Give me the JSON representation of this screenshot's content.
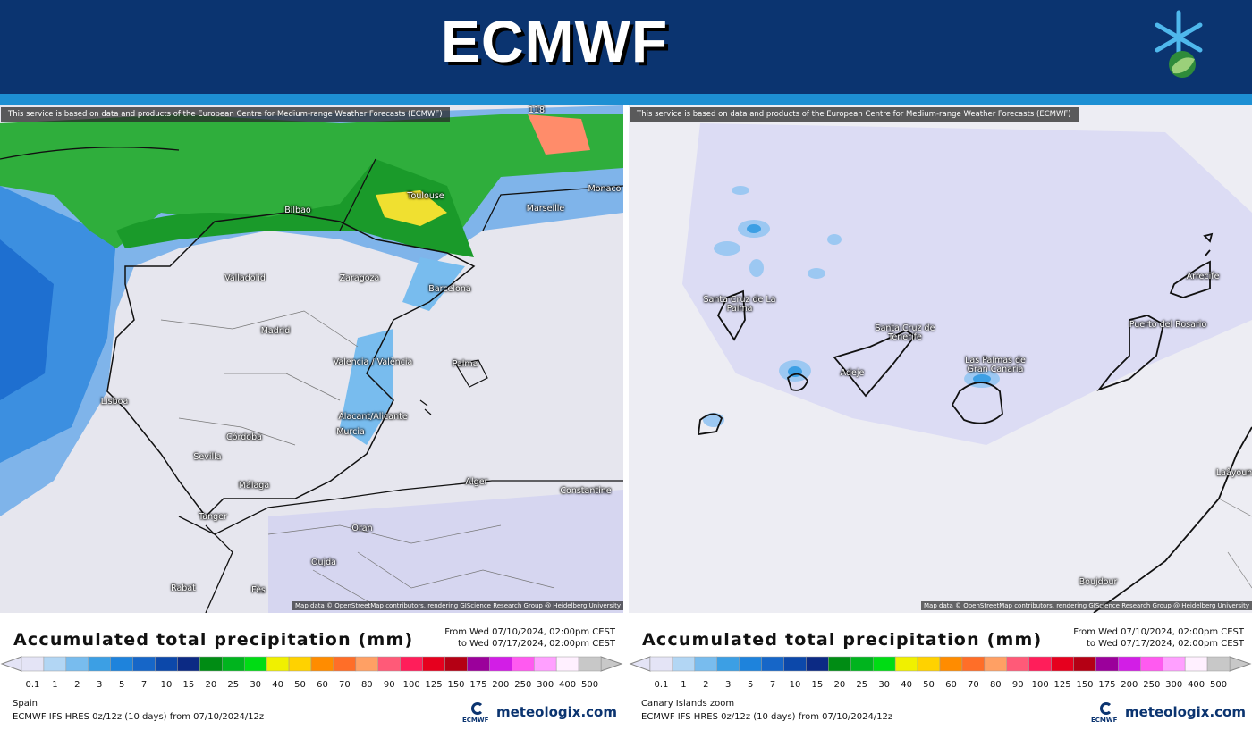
{
  "header": {
    "title": "ECMWF"
  },
  "panels": [
    {
      "notice": "This service is based on data and products of the European Centre for Medium-range Weather Forecasts (ECMWF)",
      "places": [
        "118",
        "Bilbao",
        "Toulouse",
        "Marseille",
        "Monaco",
        "Valladolid",
        "Zaragoza",
        "Barcelona",
        "Madrid",
        "Valencia / València",
        "Palma",
        "Lisboa",
        "Alacant/Alicante",
        "Murcia",
        "Córdoba",
        "Sevilla",
        "Málaga",
        "Alger",
        "Constantine",
        "Tanger",
        "Oran",
        "Oujda",
        "Rabat",
        "Fès"
      ],
      "attribution": "Map data © OpenStreetMap contributors, rendering GIScience Research Group @ Heidelberg University",
      "legend_title": "Accumulated total precipitation (mm)",
      "time_from": "From Wed 07/10/2024, 02:00pm CEST",
      "time_to": "to Wed 07/17/2024, 02:00pm CEST",
      "region": "Spain",
      "model": "ECMWF IFS HRES 0z/12z (10 days) from 07/10/2024/12z",
      "logo": "ECMWF",
      "brand": "meteologix.com"
    },
    {
      "notice": "This service is based on data and products of the European Centre for Medium-range Weather Forecasts (ECMWF)",
      "places": [
        "Santa Cruz de La Palma",
        "Santa Cruz de Tenerife",
        "Adeje",
        "Las Palmas de Gran Canaria",
        "Puerto del Rosario",
        "Arrecife",
        "Laâyoune",
        "Boujdour"
      ],
      "attribution": "Map data © OpenStreetMap contributors, rendering GIScience Research Group @ Heidelberg University",
      "legend_title": "Accumulated total precipitation (mm)",
      "time_from": "From Wed 07/10/2024, 02:00pm CEST",
      "time_to": "to Wed 07/17/2024, 02:00pm CEST",
      "region": "Canary Islands zoom",
      "model": "ECMWF IFS HRES 0z/12z (10 days) from 07/10/2024/12z",
      "logo": "ECMWF",
      "brand": "meteologix.com"
    }
  ],
  "scale": {
    "labels": [
      0.1,
      1,
      2,
      3,
      5,
      7,
      10,
      15,
      20,
      25,
      30,
      40,
      50,
      60,
      70,
      80,
      90,
      100,
      125,
      150,
      175,
      200,
      250,
      300,
      400,
      500
    ],
    "colors": [
      "#e4e4f6",
      "#b2d6f4",
      "#78bcee",
      "#3c9fe4",
      "#1e83dc",
      "#1666c8",
      "#0c48aa",
      "#0c2a84",
      "#008c14",
      "#00b41e",
      "#00dc14",
      "#f0f000",
      "#ffd200",
      "#ff8c00",
      "#ff6e28",
      "#ffa064",
      "#ff5a78",
      "#ff1e5a",
      "#e6001e",
      "#b40014",
      "#9b009b",
      "#d21ee6",
      "#ff5af0",
      "#ffa0ff",
      "#fff0ff",
      "#c8c8c8"
    ]
  }
}
